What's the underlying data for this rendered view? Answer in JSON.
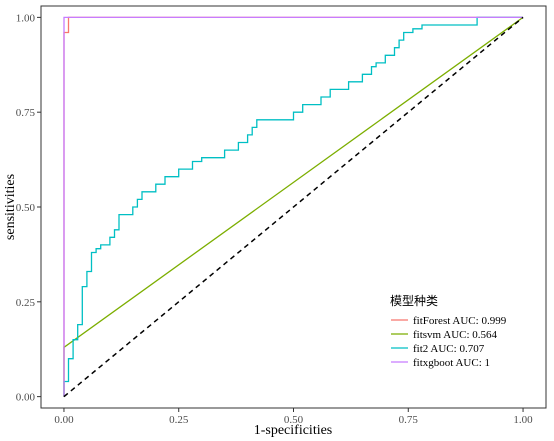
{
  "chart_data": {
    "type": "line",
    "title": "",
    "xlabel": "1-specificities",
    "ylabel": "sensitivities",
    "xlim": [
      -0.05,
      1.05
    ],
    "ylim": [
      -0.03,
      1.03
    ],
    "x_ticks": [
      0.0,
      0.25,
      0.5,
      0.75,
      1.0
    ],
    "x_tick_labels": [
      "0.00",
      "0.25",
      "0.50",
      "0.75",
      "1.00"
    ],
    "y_ticks": [
      0.0,
      0.25,
      0.5,
      0.75,
      1.0
    ],
    "y_tick_labels": [
      "0.00",
      "0.25",
      "0.50",
      "0.75",
      "1.00"
    ],
    "grid": false,
    "legend_title": "模型种类",
    "legend_position": "bottom-right",
    "reference_line": {
      "x": [
        0,
        1
      ],
      "y": [
        0,
        1
      ],
      "style": "dashed",
      "color": "#000000"
    },
    "series": [
      {
        "name": "fitForest AUC: 0.999",
        "color": "#F8766D",
        "x": [
          0,
          0.0,
          0.0,
          0.01,
          0.01,
          1.0
        ],
        "y": [
          0,
          0.95,
          0.96,
          0.96,
          1.0,
          1.0
        ]
      },
      {
        "name": "fitsvm AUC: 0.564",
        "color": "#7CAE00",
        "x": [
          0,
          0.0,
          1.0
        ],
        "y": [
          0,
          0.13,
          1.0
        ]
      },
      {
        "name": "fit2 AUC: 0.707",
        "color": "#00BFC4",
        "x": [
          0,
          0.0,
          0.01,
          0.01,
          0.02,
          0.02,
          0.03,
          0.03,
          0.04,
          0.04,
          0.05,
          0.05,
          0.06,
          0.06,
          0.07,
          0.07,
          0.08,
          0.08,
          0.1,
          0.1,
          0.11,
          0.11,
          0.12,
          0.12,
          0.15,
          0.15,
          0.16,
          0.16,
          0.17,
          0.17,
          0.2,
          0.2,
          0.22,
          0.22,
          0.25,
          0.25,
          0.28,
          0.28,
          0.3,
          0.3,
          0.35,
          0.35,
          0.38,
          0.38,
          0.4,
          0.4,
          0.41,
          0.41,
          0.42,
          0.42,
          0.5,
          0.5,
          0.52,
          0.52,
          0.56,
          0.56,
          0.58,
          0.58,
          0.62,
          0.62,
          0.65,
          0.65,
          0.67,
          0.67,
          0.68,
          0.68,
          0.7,
          0.7,
          0.72,
          0.72,
          0.73,
          0.73,
          0.74,
          0.74,
          0.76,
          0.76,
          0.78,
          0.78,
          0.8,
          0.8,
          0.9,
          0.9,
          1.0
        ],
        "y": [
          0,
          0.04,
          0.04,
          0.1,
          0.1,
          0.15,
          0.15,
          0.19,
          0.19,
          0.29,
          0.29,
          0.33,
          0.33,
          0.38,
          0.38,
          0.39,
          0.39,
          0.4,
          0.4,
          0.42,
          0.42,
          0.44,
          0.44,
          0.48,
          0.48,
          0.5,
          0.5,
          0.52,
          0.52,
          0.54,
          0.54,
          0.56,
          0.56,
          0.58,
          0.58,
          0.6,
          0.6,
          0.62,
          0.62,
          0.63,
          0.63,
          0.65,
          0.65,
          0.67,
          0.67,
          0.69,
          0.69,
          0.71,
          0.71,
          0.73,
          0.73,
          0.75,
          0.75,
          0.77,
          0.77,
          0.79,
          0.79,
          0.81,
          0.81,
          0.83,
          0.83,
          0.85,
          0.85,
          0.87,
          0.87,
          0.88,
          0.88,
          0.9,
          0.9,
          0.92,
          0.92,
          0.94,
          0.94,
          0.96,
          0.96,
          0.97,
          0.97,
          0.98,
          0.98,
          0.98,
          0.98,
          1.0,
          1.0
        ]
      },
      {
        "name": "fitxgboot AUC: 1",
        "color": "#C77CFF",
        "x": [
          0,
          0.0,
          1.0
        ],
        "y": [
          0,
          1.0,
          1.0
        ]
      }
    ]
  }
}
